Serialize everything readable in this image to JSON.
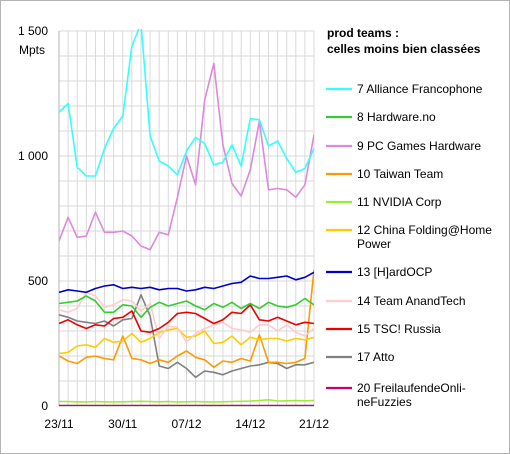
{
  "chart_data": {
    "type": "line",
    "title": "prod teams :",
    "subtitle": "celles moins bien classées",
    "ylabel": "Mpts",
    "xlabel": "",
    "ylim": [
      0,
      1500
    ],
    "yticks": [
      0,
      500,
      1000,
      1500
    ],
    "ytick_labels": [
      "0",
      "500",
      "1 000",
      "1 500"
    ],
    "x_range": [
      0,
      28
    ],
    "xticks": [
      0,
      7,
      14,
      21,
      28
    ],
    "xtick_labels": [
      "23/11",
      "30/11",
      "07/12",
      "14/12",
      "21/12"
    ],
    "grid": true,
    "legend_position": "right",
    "series": [
      {
        "name": "7 Alliance Francophone",
        "color": "#33ffff",
        "values": [
          1175,
          1210,
          955,
          920,
          920,
          1030,
          1110,
          1160,
          1440,
          1530,
          1080,
          980,
          960,
          925,
          1020,
          1075,
          1050,
          965,
          975,
          1045,
          960,
          1150,
          1145,
          1040,
          1060,
          990,
          935,
          950,
          1030
        ]
      },
      {
        "name": "8 Hardware.no",
        "color": "#33cc33",
        "values": [
          410,
          415,
          420,
          440,
          420,
          375,
          375,
          405,
          400,
          355,
          395,
          415,
          400,
          410,
          420,
          400,
          385,
          410,
          395,
          415,
          390,
          410,
          390,
          415,
          400,
          395,
          405,
          430,
          405
        ]
      },
      {
        "name": "9 PC Games Hardware",
        "color": "#dd88dd",
        "values": [
          660,
          755,
          675,
          680,
          775,
          695,
          695,
          700,
          680,
          640,
          625,
          695,
          685,
          835,
          1000,
          885,
          1225,
          1370,
          1045,
          890,
          840,
          945,
          1140,
          865,
          870,
          865,
          835,
          885,
          1085
        ]
      },
      {
        "name": "10 Taiwan Team",
        "color": "#ff9900",
        "values": [
          200,
          180,
          170,
          195,
          200,
          190,
          185,
          280,
          190,
          185,
          170,
          185,
          175,
          200,
          220,
          195,
          185,
          155,
          180,
          175,
          190,
          180,
          285,
          175,
          175,
          170,
          175,
          190,
          545
        ]
      },
      {
        "name": "11 NVIDIA Corp",
        "color": "#99ee33",
        "values": [
          18,
          18,
          17,
          16,
          18,
          17,
          16,
          17,
          18,
          19,
          18,
          17,
          18,
          16,
          17,
          18,
          17,
          16,
          17,
          18,
          19,
          20,
          22,
          25,
          20,
          21,
          22,
          21,
          22
        ]
      },
      {
        "name": "12 China Folding@Home Power",
        "color": "#ffcc00",
        "values": [
          210,
          215,
          240,
          245,
          235,
          270,
          255,
          260,
          290,
          255,
          270,
          295,
          305,
          310,
          275,
          280,
          300,
          250,
          255,
          280,
          245,
          275,
          265,
          270,
          270,
          260,
          270,
          265,
          275
        ]
      },
      {
        "name": "13 [H]ardOCP",
        "color": "#0000cc",
        "values": [
          455,
          465,
          460,
          455,
          470,
          480,
          485,
          470,
          475,
          470,
          475,
          465,
          470,
          470,
          460,
          465,
          475,
          470,
          480,
          490,
          495,
          520,
          510,
          510,
          515,
          520,
          505,
          515,
          535
        ]
      },
      {
        "name": "14 Team AnandTech",
        "color": "#ffcccc",
        "values": [
          385,
          375,
          390,
          455,
          440,
          395,
          405,
          425,
          420,
          380,
          410,
          270,
          320,
          315,
          255,
          290,
          310,
          325,
          335,
          310,
          305,
          295,
          325,
          325,
          300,
          325,
          295,
          280,
          310
        ]
      },
      {
        "name": "15 TSC! Russia",
        "color": "#ee0000",
        "values": [
          330,
          345,
          325,
          310,
          325,
          320,
          350,
          355,
          380,
          300,
          295,
          310,
          335,
          370,
          375,
          370,
          350,
          330,
          345,
          375,
          370,
          405,
          345,
          340,
          355,
          340,
          325,
          335,
          330
        ]
      },
      {
        "name": "17 Atto",
        "color": "#808080",
        "values": [
          365,
          355,
          340,
          335,
          330,
          340,
          320,
          345,
          350,
          445,
          360,
          160,
          150,
          175,
          150,
          115,
          140,
          135,
          125,
          140,
          150,
          160,
          165,
          175,
          170,
          150,
          165,
          165,
          175
        ]
      },
      {
        "name": "20 FreilaufendeOnlineFuzzies",
        "color": "#cc0066",
        "values": [
          2,
          2,
          2,
          2,
          2,
          2,
          2,
          2,
          2,
          2,
          2,
          2,
          2,
          2,
          2,
          2,
          2,
          2,
          2,
          2,
          2,
          2,
          2,
          2,
          2,
          2,
          2,
          2,
          2
        ]
      }
    ]
  },
  "legend": {
    "title_line1": "prod teams :",
    "title_line2": "celles moins bien classées",
    "entries": [
      {
        "lines": [
          "7 Alliance Francophone"
        ],
        "color": "#33ffff"
      },
      {
        "lines": [
          "8 Hardware.no"
        ],
        "color": "#33cc33"
      },
      {
        "lines": [
          "9 PC Games Hardware"
        ],
        "color": "#dd88dd"
      },
      {
        "lines": [
          "10 Taiwan Team"
        ],
        "color": "#ff9900"
      },
      {
        "lines": [
          "11 NVIDIA Corp"
        ],
        "color": "#99ee33"
      },
      {
        "lines": [
          "12 China Folding@Home",
          "Power"
        ],
        "color": "#ffcc00"
      },
      {
        "lines": [
          "13 [H]ardOCP"
        ],
        "color": "#0000cc"
      },
      {
        "lines": [
          "14 Team AnandTech"
        ],
        "color": "#ffcccc"
      },
      {
        "lines": [
          "15 TSC! Russia"
        ],
        "color": "#ee0000"
      },
      {
        "lines": [
          "17 Atto"
        ],
        "color": "#808080"
      },
      {
        "lines": [
          "20 FreilaufendeOnli-",
          "neFuzzies"
        ],
        "color": "#cc0066"
      }
    ]
  }
}
